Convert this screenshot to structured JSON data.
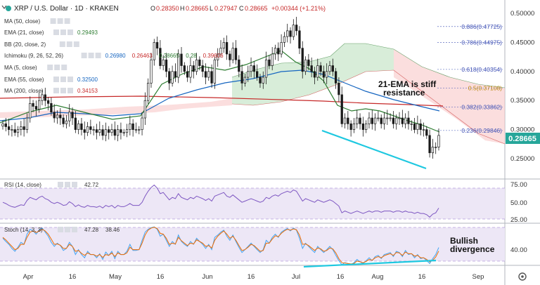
{
  "header": {
    "symbol": "XRP / U.S. Dollar · 1D · KRAKEN",
    "o_label": "O",
    "o": "0.28350",
    "h_label": "H",
    "h": "0.28665",
    "l_label": "L",
    "l": "0.27947",
    "c_label": "C",
    "c": "0.28665",
    "change": "+0.00344 (+1.21%)"
  },
  "indicators": [
    {
      "label": "MA (50, close)",
      "value": "",
      "color": "#f50057"
    },
    {
      "label": "EMA (21, close)",
      "value": "0.29493",
      "color": "#2e7d32"
    },
    {
      "label": "BB (20, close, 2)",
      "value": "",
      "color": "#1565c0"
    },
    {
      "label": "Ichimoku (9, 26, 52, 26)",
      "values": [
        "0.26980",
        "0.26463",
        "0.28665",
        "0.28",
        "0.39606"
      ],
      "colors": [
        "#1565c0",
        "#c62828",
        "#2e7d32",
        "#2e7d32",
        "#c62828"
      ]
    },
    {
      "label": "MA (5, close)",
      "value": "",
      "color": "#f50057"
    },
    {
      "label": "EMA (55, close)",
      "value": "0.32500",
      "color": "#1565c0"
    },
    {
      "label": "MA (200, close)",
      "value": "0.34153",
      "color": "#c62828"
    }
  ],
  "annotations": {
    "ema_note_line1": "21-EMA is stiff",
    "ema_note_line2": "resistance",
    "bullish_line1": "Bullish",
    "bullish_line2": "divergence"
  },
  "rsi": {
    "label": "RSI (14, close)",
    "value": "42.72"
  },
  "stoch": {
    "label": "Stoch (14, 3, 3)",
    "k": "47.28",
    "d": "38.46"
  },
  "current_price": "0.28665",
  "colors": {
    "up": "#26a69a",
    "down": "#ef5350",
    "candle": "#1a1a1a",
    "ema21": "#2e7d32",
    "ema55": "#1565c0",
    "ma200": "#c62828",
    "fib": "#3f51b5",
    "trendline": "#1ec8e0",
    "rsi": "#7e57c2",
    "stochk": "#42a5f5",
    "stochd": "#ef6c00"
  },
  "chart_data": [
    {
      "type": "candlestick",
      "title": "XRP / U.S. Dollar · 1D · KRAKEN",
      "x_ticks": [
        "Apr",
        "16",
        "May",
        "16",
        "Jun",
        "16",
        "Jul",
        "16",
        "Aug",
        "16",
        "Sep",
        "16"
      ],
      "y_ticks": [
        "0.50000",
        "0.45000",
        "0.40000",
        "0.35000",
        "0.30000",
        "0.25000"
      ],
      "ylim": [
        0.22,
        0.51
      ],
      "closes": [
        0.31,
        0.305,
        0.3,
        0.3,
        0.295,
        0.3,
        0.305,
        0.3,
        0.32,
        0.345,
        0.34,
        0.335,
        0.35,
        0.36,
        0.35,
        0.345,
        0.33,
        0.32,
        0.325,
        0.32,
        0.31,
        0.315,
        0.33,
        0.32,
        0.3,
        0.31,
        0.3,
        0.295,
        0.305,
        0.3,
        0.3,
        0.295,
        0.3,
        0.29,
        0.3,
        0.295,
        0.3,
        0.29,
        0.3,
        0.295,
        0.295,
        0.3,
        0.31,
        0.3,
        0.3,
        0.3,
        0.32,
        0.35,
        0.38,
        0.42,
        0.45,
        0.44,
        0.41,
        0.42,
        0.4,
        0.38,
        0.4,
        0.39,
        0.43,
        0.41,
        0.4,
        0.39,
        0.41,
        0.4,
        0.42,
        0.41,
        0.4,
        0.39,
        0.4,
        0.38,
        0.42,
        0.43,
        0.44,
        0.45,
        0.43,
        0.42,
        0.44,
        0.42,
        0.4,
        0.38,
        0.39,
        0.4,
        0.41,
        0.4,
        0.39,
        0.38,
        0.39,
        0.42,
        0.41,
        0.43,
        0.44,
        0.43,
        0.45,
        0.46,
        0.47,
        0.46,
        0.48,
        0.47,
        0.44,
        0.4,
        0.42,
        0.41,
        0.4,
        0.39,
        0.41,
        0.4,
        0.39,
        0.4,
        0.41,
        0.4,
        0.38,
        0.36,
        0.31,
        0.32,
        0.31,
        0.3,
        0.31,
        0.32,
        0.31,
        0.3,
        0.31,
        0.32,
        0.31,
        0.32,
        0.32,
        0.31,
        0.32,
        0.32,
        0.32,
        0.31,
        0.32,
        0.32,
        0.31,
        0.32,
        0.31,
        0.31,
        0.3,
        0.31,
        0.3,
        0.3,
        0.29,
        0.26,
        0.27,
        0.27,
        0.29
      ],
      "fib_levels": [
        {
          "label": "0.886(0.47725)",
          "value": 0.47725
        },
        {
          "label": "0.786(0.44975)",
          "value": 0.44975
        },
        {
          "label": "0.618(0.40354)",
          "value": 0.40354
        },
        {
          "label": "0.5(0.37108)",
          "value": 0.37108
        },
        {
          "label": "0.382(0.33862)",
          "value": 0.33862
        },
        {
          "label": "0.236(0.29846)",
          "value": 0.29846
        }
      ]
    },
    {
      "type": "line",
      "title": "RSI (14, close)",
      "y_ticks": [
        "75.00",
        "50.00",
        "25.00"
      ],
      "ylim": [
        20,
        85
      ],
      "values": [
        52,
        50,
        47,
        45,
        44,
        46,
        48,
        47,
        55,
        60,
        58,
        56,
        60,
        62,
        58,
        56,
        52,
        50,
        52,
        50,
        47,
        48,
        53,
        50,
        45,
        48,
        45,
        44,
        47,
        45,
        45,
        44,
        46,
        43,
        47,
        45,
        47,
        43,
        47,
        45,
        45,
        47,
        50,
        47,
        47,
        47,
        52,
        62,
        70,
        76,
        80,
        75,
        66,
        68,
        62,
        56,
        60,
        58,
        66,
        60,
        58,
        56,
        60,
        58,
        62,
        60,
        58,
        55,
        58,
        54,
        62,
        64,
        66,
        68,
        62,
        60,
        64,
        60,
        56,
        52,
        54,
        56,
        58,
        56,
        54,
        52,
        54,
        60,
        58,
        62,
        64,
        62,
        66,
        68,
        70,
        68,
        72,
        70,
        62,
        54,
        58,
        56,
        54,
        52,
        56,
        54,
        52,
        54,
        56,
        54,
        50,
        46,
        35,
        38,
        36,
        34,
        36,
        38,
        36,
        34,
        36,
        38,
        36,
        38,
        38,
        36,
        38,
        38,
        38,
        36,
        38,
        38,
        36,
        38,
        36,
        36,
        34,
        36,
        34,
        34,
        32,
        28,
        33,
        35,
        42.72
      ]
    },
    {
      "type": "line",
      "title": "Stoch (14, 3, 3)",
      "y_ticks": [
        "40.00"
      ],
      "ylim": [
        0,
        100
      ],
      "series": [
        {
          "name": "%K",
          "values": [
            70,
            62,
            55,
            45,
            38,
            48,
            60,
            55,
            80,
            92,
            88,
            80,
            90,
            95,
            85,
            75,
            60,
            50,
            58,
            52,
            40,
            45,
            60,
            50,
            30,
            42,
            30,
            22,
            38,
            30,
            30,
            22,
            32,
            18,
            36,
            28,
            38,
            20,
            38,
            30,
            30,
            38,
            55,
            40,
            40,
            42,
            65,
            85,
            92,
            96,
            98,
            92,
            75,
            80,
            65,
            50,
            62,
            55,
            78,
            62,
            55,
            50,
            62,
            55,
            70,
            62,
            55,
            45,
            55,
            42,
            72,
            78,
            85,
            90,
            75,
            65,
            78,
            62,
            48,
            35,
            42,
            50,
            58,
            50,
            42,
            35,
            42,
            65,
            58,
            72,
            80,
            72,
            85,
            90,
            94,
            88,
            95,
            90,
            70,
            45,
            58,
            50,
            42,
            35,
            50,
            42,
            35,
            42,
            50,
            42,
            28,
            15,
            5,
            10,
            8,
            5,
            10,
            18,
            12,
            8,
            15,
            22,
            15,
            25,
            28,
            20,
            30,
            32,
            35,
            25,
            38,
            35,
            25,
            40,
            30,
            32,
            22,
            30,
            20,
            22,
            15,
            8,
            20,
            30,
            47.28
          ]
        },
        {
          "name": "%D",
          "values": [
            72,
            66,
            58,
            50,
            42,
            45,
            55,
            55,
            72,
            85,
            88,
            84,
            88,
            92,
            88,
            80,
            68,
            55,
            56,
            53,
            45,
            45,
            55,
            50,
            38,
            40,
            33,
            28,
            34,
            30,
            30,
            26,
            30,
            23,
            30,
            28,
            34,
            25,
            34,
            30,
            30,
            34,
            48,
            42,
            42,
            42,
            58,
            78,
            90,
            95,
            97,
            94,
            82,
            80,
            70,
            55,
            58,
            56,
            72,
            64,
            58,
            52,
            58,
            56,
            66,
            62,
            58,
            50,
            52,
            46,
            65,
            75,
            82,
            88,
            80,
            70,
            75,
            65,
            52,
            40,
            42,
            48,
            55,
            52,
            45,
            38,
            40,
            58,
            58,
            68,
            76,
            74,
            82,
            88,
            92,
            90,
            93,
            91,
            78,
            55,
            56,
            52,
            46,
            40,
            46,
            44,
            38,
            40,
            46,
            44,
            34,
            20,
            10,
            9,
            8,
            7,
            8,
            14,
            12,
            10,
            13,
            18,
            16,
            22,
            25,
            22,
            27,
            30,
            32,
            28,
            35,
            34,
            28,
            36,
            32,
            32,
            26,
            28,
            22,
            22,
            18,
            12,
            16,
            24,
            38.46
          ]
        }
      ]
    }
  ]
}
